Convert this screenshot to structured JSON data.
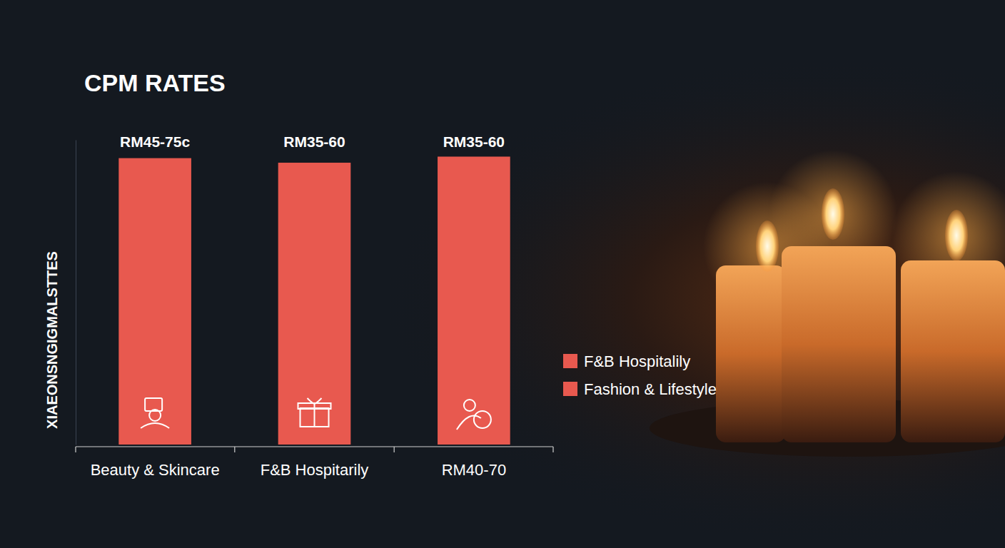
{
  "chart_data": {
    "type": "bar",
    "title": "CPM RATES",
    "y_label": "XIAEONSNGIGMALSTTES",
    "categories": [
      "Beauty & Skincare",
      "F&B Hospitarily",
      "RM40-70"
    ],
    "values": [
      94,
      92.5,
      94.5
    ],
    "annotations": [
      "RM45-75c",
      "RM35-60",
      "RM35-60"
    ],
    "legend_labels": [
      "F&B Hospitalily",
      "Fashion & Lifestyle"
    ],
    "color": "#e8594f",
    "ylim": [
      0,
      100
    ],
    "tick_labels": "x",
    "legend": "right",
    "grid": false
  }
}
